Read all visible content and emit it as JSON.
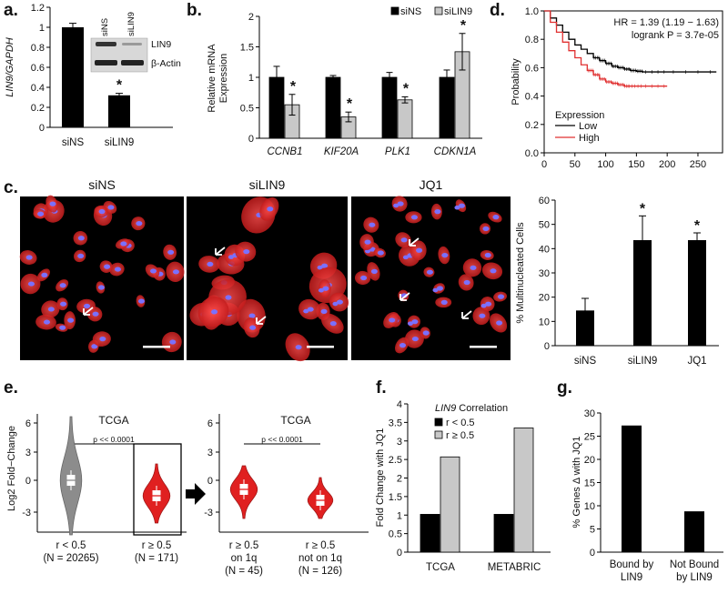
{
  "panels": {
    "a": {
      "label": "a.",
      "chart_data": {
        "type": "bar",
        "ylabel": "LIN9/GAPDH",
        "categories": [
          "siNS",
          "siLIN9"
        ],
        "values": [
          1.0,
          0.32
        ],
        "errors": [
          0.04,
          0.02
        ],
        "ylim": [
          0,
          1.2
        ],
        "yticks": [
          "0",
          "0.2",
          "0.4",
          "0.6",
          "0.8",
          "1",
          "1.2"
        ],
        "significance": [
          "",
          "*"
        ],
        "blot": {
          "lanes": [
            "siNS",
            "siLIN9"
          ],
          "rows": [
            "LIN9",
            "β-Actin"
          ]
        }
      }
    },
    "b": {
      "label": "b.",
      "chart_data": {
        "type": "bar",
        "ylabel": "Relative mRNA Expression",
        "categories": [
          "CCNB1",
          "KIF20A",
          "PLK1",
          "CDKN1A"
        ],
        "series": [
          {
            "name": "siNS",
            "values": [
              1.0,
              1.0,
              1.0,
              1.0
            ],
            "errors": [
              0.18,
              0.03,
              0.08,
              0.12
            ],
            "color": "#000000"
          },
          {
            "name": "siLIN9",
            "values": [
              0.55,
              0.35,
              0.63,
              1.42
            ],
            "errors": [
              0.17,
              0.08,
              0.05,
              0.3
            ],
            "color": "#c8c8c8"
          }
        ],
        "significance": [
          "*",
          "*",
          "*",
          "*"
        ],
        "ylim": [
          0,
          2
        ],
        "yticks": [
          "0",
          "0.5",
          "1",
          "1.5",
          "2"
        ],
        "legend": "top-right"
      }
    },
    "c": {
      "label": "c.",
      "images": [
        {
          "title": "siNS"
        },
        {
          "title": "siLIN9"
        },
        {
          "title": "JQ1"
        }
      ],
      "chart_data": {
        "type": "bar",
        "ylabel": "% Multinucleated Cells",
        "categories": [
          "siNS",
          "siLIN9",
          "JQ1"
        ],
        "values": [
          14.5,
          43.5,
          43.5
        ],
        "errors": [
          5,
          10,
          3
        ],
        "significance": [
          "",
          "*",
          "*"
        ],
        "ylim": [
          0,
          60
        ],
        "yticks": [
          "0",
          "10",
          "20",
          "30",
          "40",
          "50",
          "60"
        ]
      }
    },
    "d": {
      "label": "d.",
      "chart_data": {
        "type": "line",
        "ylabel": "Probability",
        "xlim": [
          0,
          290
        ],
        "ylim": [
          0,
          1
        ],
        "xticks": [
          "0",
          "50",
          "100",
          "150",
          "200",
          "250"
        ],
        "yticks": [
          "0.0",
          "0.2",
          "0.4",
          "0.6",
          "0.8",
          "1.0"
        ],
        "annotation": [
          "HR = 1.39 (1.19 − 1.63)",
          "logrank P = 3.7e-05"
        ],
        "legend_title": "Expression",
        "legend": "bottom-left",
        "series": [
          {
            "name": "Low",
            "color": "#000000",
            "x": [
              0,
              10,
              20,
              30,
              40,
              50,
              60,
              70,
              80,
              90,
              100,
              110,
              120,
              130,
              140,
              150,
              160,
              200,
              280
            ],
            "y": [
              1.0,
              0.95,
              0.9,
              0.85,
              0.8,
              0.76,
              0.73,
              0.7,
              0.67,
              0.65,
              0.63,
              0.61,
              0.6,
              0.59,
              0.58,
              0.575,
              0.57,
              0.57,
              0.57
            ]
          },
          {
            "name": "High",
            "color": "#e03030",
            "x": [
              0,
              10,
              20,
              30,
              40,
              50,
              60,
              70,
              80,
              90,
              100,
              110,
              120,
              130,
              140,
              160,
              200
            ],
            "y": [
              1.0,
              0.92,
              0.85,
              0.78,
              0.72,
              0.67,
              0.62,
              0.58,
              0.55,
              0.52,
              0.5,
              0.49,
              0.48,
              0.47,
              0.47,
              0.47,
              0.47
            ]
          }
        ]
      }
    },
    "e": {
      "label": "e.",
      "ylabel": "Log2 Fold−Change",
      "yticks": [
        "6",
        "3",
        "0",
        "-3"
      ],
      "left": {
        "title": "TCGA",
        "pvalue": "p << 0.0001",
        "groups": [
          {
            "label": "r < 0.5",
            "n": "(N = 20265)"
          },
          {
            "label": "r ≥ 0.5",
            "n": "(N = 171)"
          }
        ]
      },
      "right": {
        "title": "TCGA",
        "pvalue": "p << 0.0001",
        "groups": [
          {
            "label": "r ≥ 0.5",
            "sub": "on 1q",
            "n": "(N = 45)"
          },
          {
            "label": "r ≥ 0.5",
            "sub": "not on 1q",
            "n": "(N = 126)"
          }
        ]
      }
    },
    "f": {
      "label": "f.",
      "chart_data": {
        "type": "bar",
        "ylabel": "Fold Change with JQ1",
        "legend_title": "LIN9 Correlation",
        "categories": [
          "TCGA",
          "METABRIC"
        ],
        "series": [
          {
            "name": "r < 0.5",
            "values": [
              1.02,
              1.02
            ],
            "color": "#000000"
          },
          {
            "name": "r ≥ 0.5",
            "values": [
              2.57,
              3.35
            ],
            "color": "#c8c8c8"
          }
        ],
        "ylim": [
          0,
          4
        ],
        "yticks": [
          "0",
          "0.5",
          "1",
          "1.5",
          "2",
          "2.5",
          "3",
          "3.5",
          "4"
        ]
      }
    },
    "g": {
      "label": "g.",
      "chart_data": {
        "type": "bar",
        "ylabel": "% Genes Δ with JQ1",
        "categories": [
          "Bound by LIN9",
          "Not Bound by LIN9"
        ],
        "category_lines": [
          [
            "Bound by",
            "LIN9"
          ],
          [
            "Not Bound",
            "by LIN9"
          ]
        ],
        "values": [
          27.3,
          8.8
        ],
        "ylim": [
          0,
          30
        ],
        "yticks": [
          "0",
          "5",
          "10",
          "15",
          "20",
          "25",
          "30"
        ]
      }
    }
  }
}
